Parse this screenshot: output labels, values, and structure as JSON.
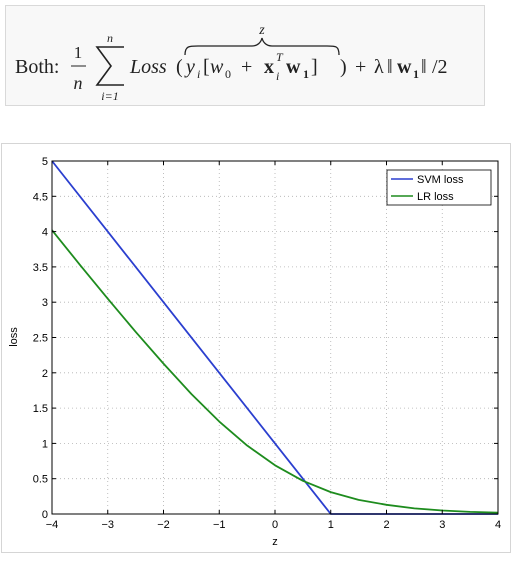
{
  "formula": {
    "prefix": "Both:",
    "frac_num": "1",
    "frac_den": "n",
    "sum_upper": "n",
    "sum_lower": "i=1",
    "loss_word": "Loss",
    "open_paren": "(",
    "overbrace_label": "z",
    "y": "y",
    "y_sub": "i",
    "open_bracket": "[",
    "w0": "w",
    "w0_sub": "0",
    "plus1": "+",
    "x": "x",
    "x_sub": "i",
    "x_sup": "T",
    "w1": "w",
    "w1_sub": "1",
    "close_bracket": "]",
    "close_paren": ")",
    "plus2": "+",
    "lambda": "λ",
    "norm_open": "‖",
    "norm_w": "w",
    "norm_w_sub": "1",
    "norm_close": "‖",
    "tail": "/2"
  },
  "chart_data": {
    "type": "line",
    "title": "",
    "xlabel": "z",
    "ylabel": "loss",
    "xlim": [
      -4,
      4
    ],
    "ylim": [
      0,
      5
    ],
    "xticks": [
      -4,
      -3,
      -2,
      -1,
      0,
      1,
      2,
      3,
      4
    ],
    "yticks": [
      0,
      0.5,
      1,
      1.5,
      2,
      2.5,
      3,
      3.5,
      4,
      4.5,
      5
    ],
    "xtick_labels": [
      "−4",
      "−3",
      "−2",
      "−1",
      "0",
      "1",
      "2",
      "3",
      "4"
    ],
    "ytick_labels": [
      "0",
      "0.5",
      "1",
      "1.5",
      "2",
      "2.5",
      "3",
      "3.5",
      "4",
      "4.5",
      "5"
    ],
    "grid": true,
    "legend_position": "top-right",
    "series": [
      {
        "name": "SVM loss",
        "color": "#2b3fcf",
        "x": [
          -4,
          -3,
          -2,
          -1,
          0,
          1,
          2,
          3,
          4
        ],
        "y": [
          5,
          4,
          3,
          2,
          1,
          0,
          0,
          0,
          0
        ]
      },
      {
        "name": "LR loss",
        "color": "#1e8c1e",
        "x": [
          -4,
          -3.5,
          -3,
          -2.5,
          -2,
          -1.5,
          -1,
          -0.5,
          0,
          0.5,
          1,
          1.5,
          2,
          2.5,
          3,
          3.5,
          4
        ],
        "y": [
          4.02,
          3.53,
          3.05,
          2.58,
          2.13,
          1.7,
          1.31,
          0.97,
          0.69,
          0.47,
          0.31,
          0.2,
          0.13,
          0.08,
          0.05,
          0.03,
          0.02
        ]
      }
    ]
  }
}
